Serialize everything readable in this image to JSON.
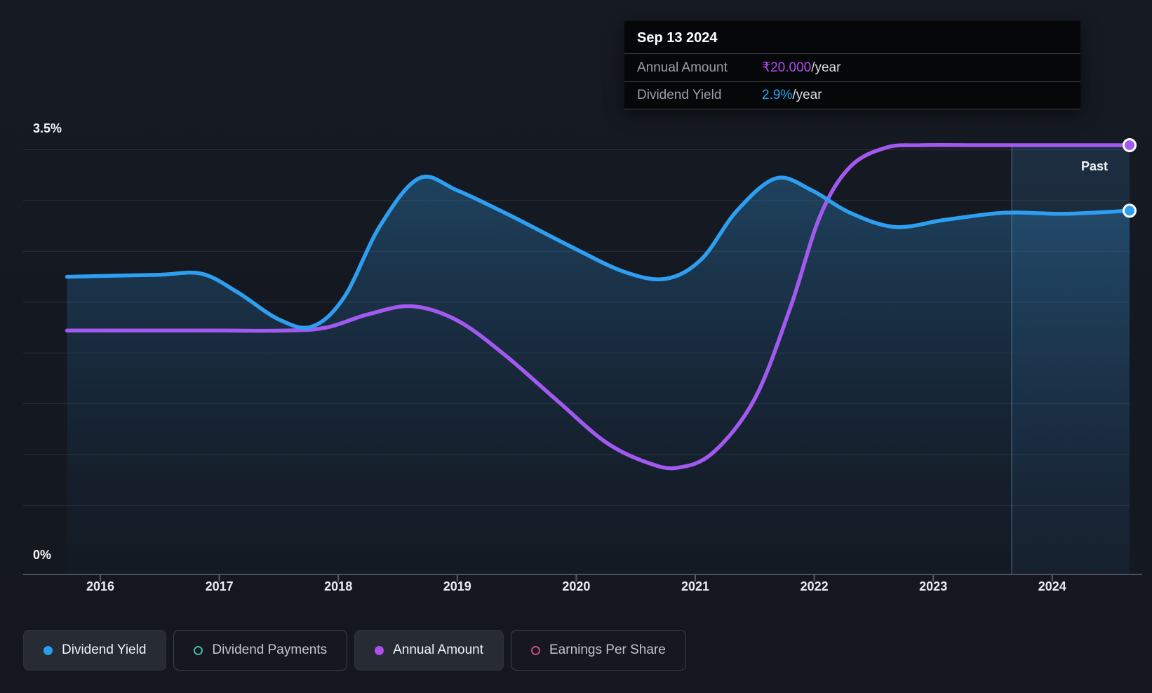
{
  "page": {
    "background": "#141820"
  },
  "tooltip": {
    "date": "Sep 13 2024",
    "rows": [
      {
        "label": "Annual Amount",
        "value": "₹20.000",
        "suffix": "/year",
        "value_color": "#b44bf0"
      },
      {
        "label": "Dividend Yield",
        "value": "2.9%",
        "suffix": "/year",
        "value_color": "#2ba3f7"
      }
    ]
  },
  "legend": [
    {
      "label": "Dividend Yield",
      "color": "#2b9df0",
      "marker": "filled",
      "active": true
    },
    {
      "label": "Dividend Payments",
      "color": "#45b8a7",
      "marker": "outline",
      "active": false
    },
    {
      "label": "Annual Amount",
      "color": "#b04ff0",
      "marker": "filled",
      "active": true
    },
    {
      "label": "Earnings Per Share",
      "color": "#d2497e",
      "marker": "outline",
      "active": false
    }
  ],
  "chart_data": {
    "type": "area",
    "title": "",
    "x_axis": {
      "ticks": [
        2016,
        2017,
        2018,
        2019,
        2020,
        2021,
        2022,
        2023,
        2024
      ],
      "range": [
        2015.72,
        2024.65
      ]
    },
    "y_axis": {
      "unit": "%",
      "range": [
        0,
        3.5
      ],
      "gridline_step": 0.5,
      "top_label": "3.5%",
      "bottom_label": "0%"
    },
    "grid": true,
    "legend_position": "bottom-left",
    "past_band": {
      "start": 2023.66,
      "end": 2024.65,
      "label": "Past"
    },
    "series": [
      {
        "name": "Dividend Yield",
        "color": "#2e9ef0",
        "fill": true,
        "end_marker": true,
        "end_value_label": "2.9%/year",
        "points": [
          [
            2015.72,
            2.25
          ],
          [
            2016.1,
            2.26
          ],
          [
            2016.5,
            2.27
          ],
          [
            2016.85,
            2.28
          ],
          [
            2017.15,
            2.1
          ],
          [
            2017.5,
            1.83
          ],
          [
            2017.78,
            1.76
          ],
          [
            2018.05,
            2.05
          ],
          [
            2018.35,
            2.75
          ],
          [
            2018.68,
            3.22
          ],
          [
            2019.0,
            3.1
          ],
          [
            2019.45,
            2.85
          ],
          [
            2019.95,
            2.55
          ],
          [
            2020.4,
            2.3
          ],
          [
            2020.75,
            2.23
          ],
          [
            2021.05,
            2.42
          ],
          [
            2021.35,
            2.9
          ],
          [
            2021.68,
            3.22
          ],
          [
            2021.98,
            3.1
          ],
          [
            2022.3,
            2.88
          ],
          [
            2022.68,
            2.74
          ],
          [
            2023.1,
            2.81
          ],
          [
            2023.6,
            2.88
          ],
          [
            2024.1,
            2.87
          ],
          [
            2024.65,
            2.9
          ]
        ]
      },
      {
        "name": "Annual Amount",
        "color": "#a259f0",
        "fill": false,
        "end_marker": true,
        "end_value_label": "₹20.000/year",
        "points": [
          [
            2015.72,
            1.72
          ],
          [
            2016.3,
            1.72
          ],
          [
            2017.0,
            1.72
          ],
          [
            2017.55,
            1.72
          ],
          [
            2017.9,
            1.75
          ],
          [
            2018.25,
            1.88
          ],
          [
            2018.62,
            1.96
          ],
          [
            2019.0,
            1.82
          ],
          [
            2019.4,
            1.48
          ],
          [
            2019.85,
            1.02
          ],
          [
            2020.25,
            0.62
          ],
          [
            2020.6,
            0.42
          ],
          [
            2020.85,
            0.37
          ],
          [
            2021.15,
            0.52
          ],
          [
            2021.5,
            1.05
          ],
          [
            2021.8,
            1.95
          ],
          [
            2022.05,
            2.85
          ],
          [
            2022.3,
            3.33
          ],
          [
            2022.6,
            3.52
          ],
          [
            2022.9,
            3.545
          ],
          [
            2023.4,
            3.545
          ],
          [
            2024.0,
            3.545
          ],
          [
            2024.65,
            3.545
          ]
        ]
      }
    ]
  }
}
